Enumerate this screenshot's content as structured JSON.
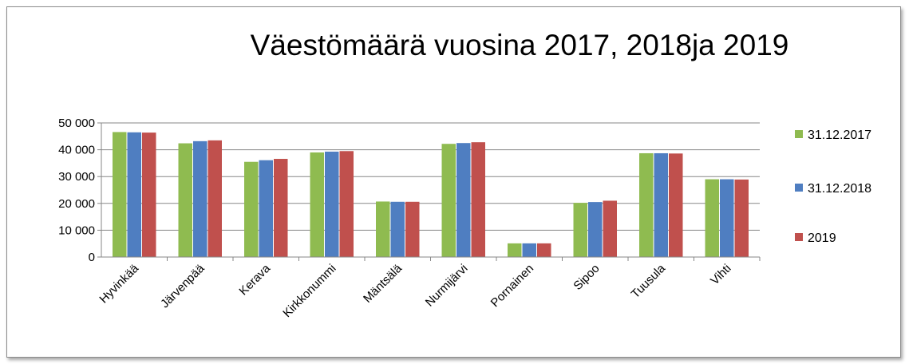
{
  "chart_data": {
    "type": "bar",
    "title": "Väestömäärä vuosina 2017, 2018ja 2019",
    "xlabel": "",
    "ylabel": "",
    "categories": [
      "Hyvinkää",
      "Järvenpää",
      "Kerava",
      "Kirkkonummi",
      "Mäntsälä",
      "Nurmijärvi",
      "Pornainen",
      "Sipoo",
      "Tuusula",
      "Vihti"
    ],
    "series": [
      {
        "name": "31.12.2017",
        "color": "#8fbb50",
        "values": [
          46600,
          42400,
          35500,
          39000,
          20700,
          42200,
          5100,
          20200,
          38700,
          29000
        ]
      },
      {
        "name": "31.12.2018",
        "color": "#4f7ec1",
        "values": [
          46500,
          43200,
          36100,
          39300,
          20600,
          42500,
          5100,
          20500,
          38700,
          29000
        ]
      },
      {
        "name": "2019",
        "color": "#c0504d",
        "values": [
          46400,
          43500,
          36600,
          39500,
          20600,
          42800,
          5100,
          21000,
          38600,
          28900
        ]
      }
    ],
    "ylim": [
      0,
      50000
    ],
    "y_ticks": [
      {
        "value": 0,
        "label": "0"
      },
      {
        "value": 10000,
        "label": "10 000"
      },
      {
        "value": 20000,
        "label": "20 000"
      },
      {
        "value": 30000,
        "label": "30 000"
      },
      {
        "value": 40000,
        "label": "40 000"
      },
      {
        "value": 50000,
        "label": "50 000"
      }
    ],
    "grid": true,
    "legend_position": "right"
  }
}
